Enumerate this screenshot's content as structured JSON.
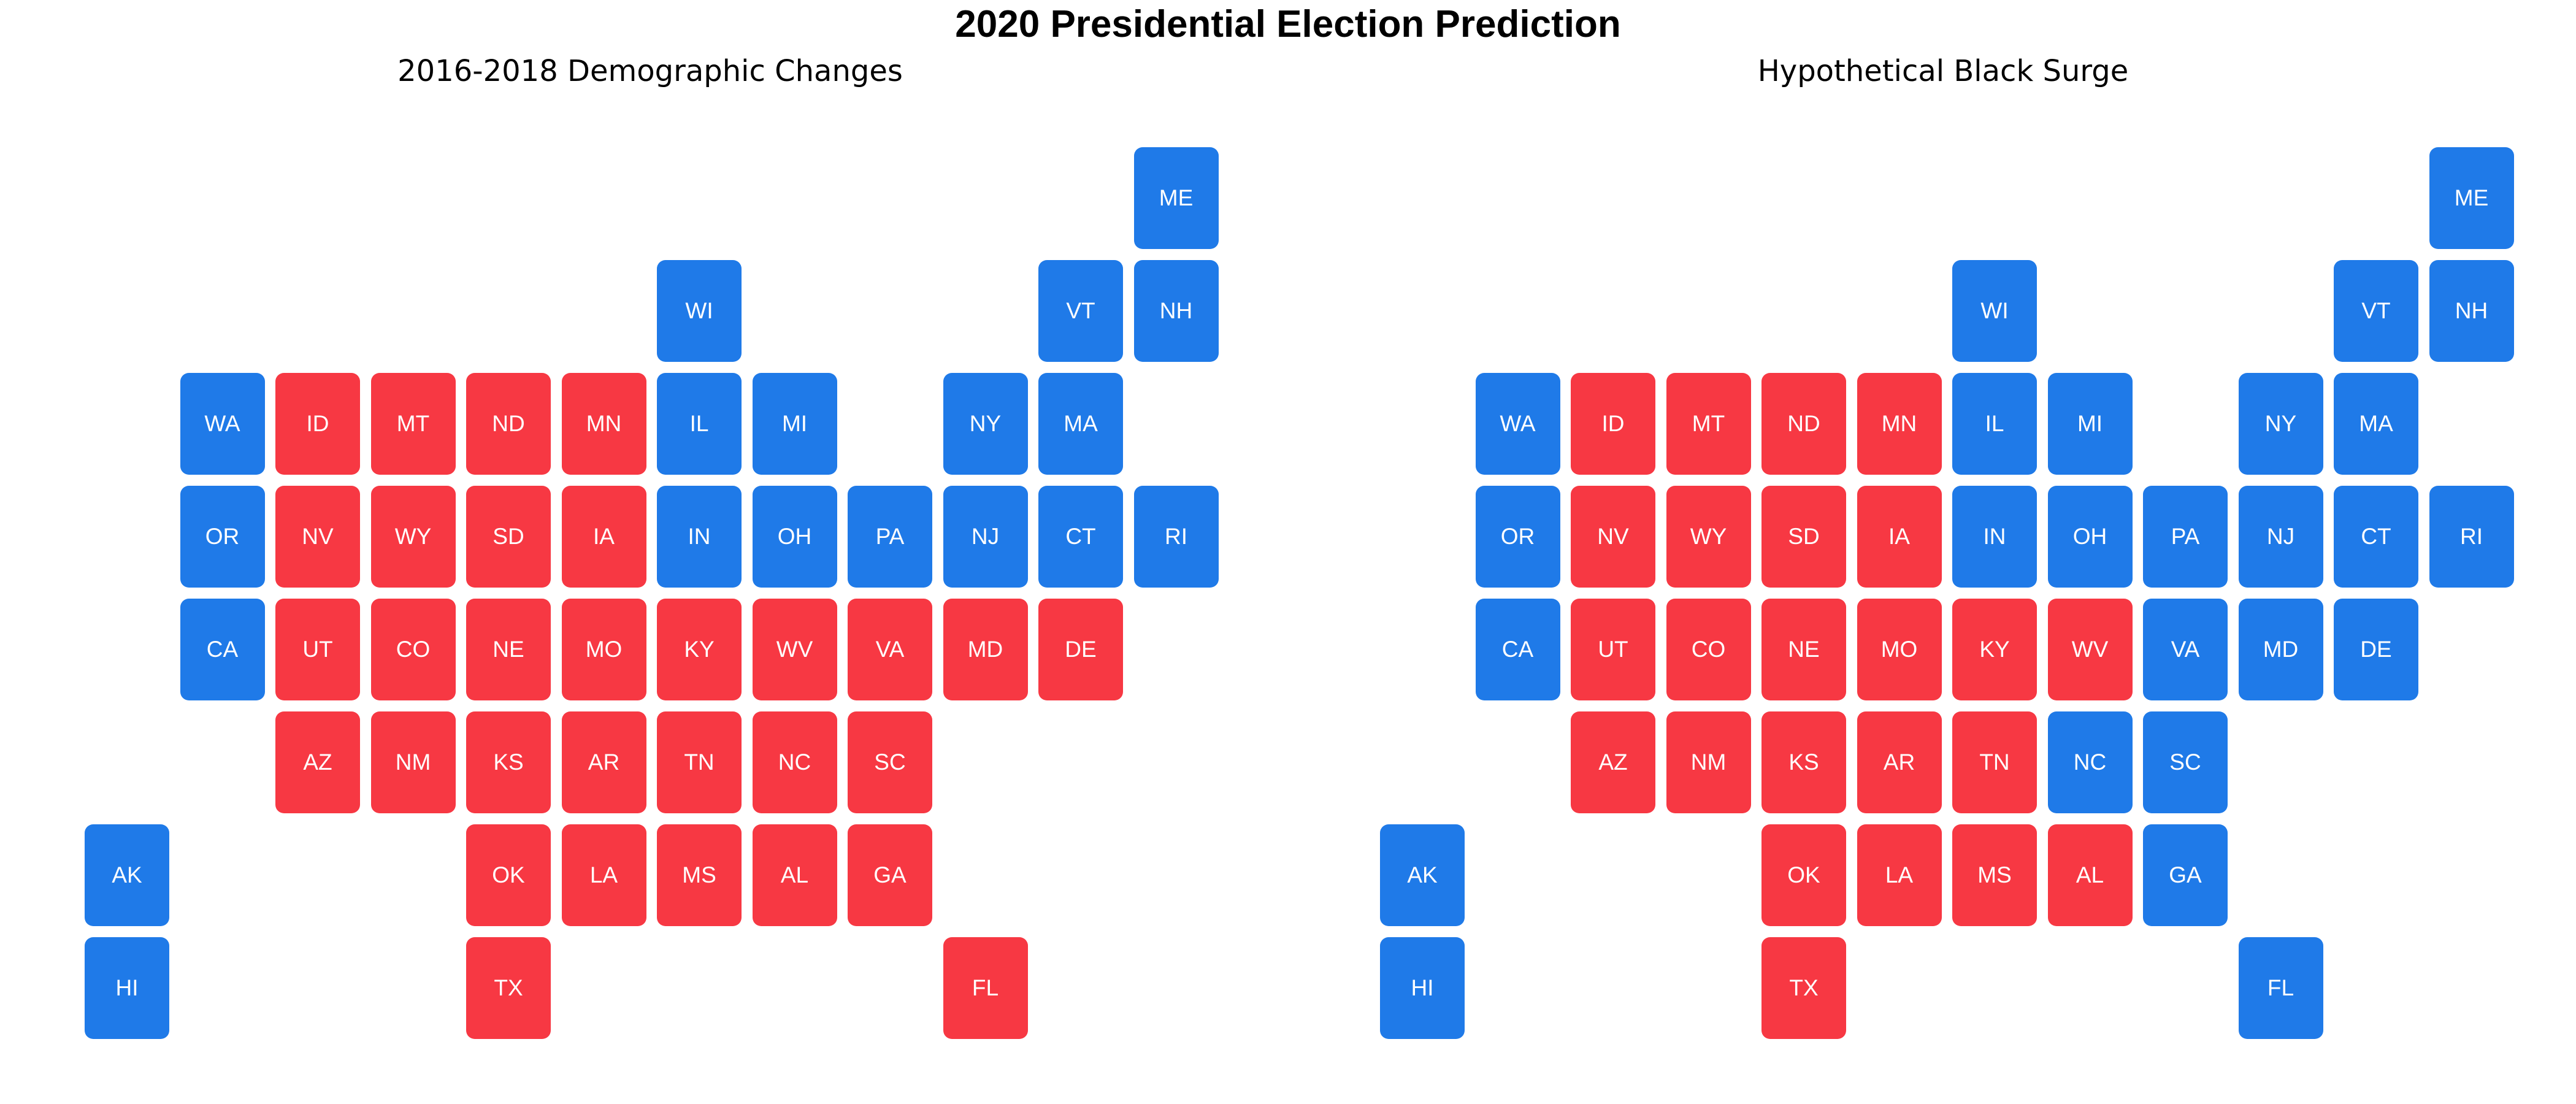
{
  "title": "2020 Presidential Election Prediction",
  "colors": {
    "dem": "#1f7ae8",
    "rep": "#f73843"
  },
  "grid": {
    "ME": [
      11,
      0
    ],
    "WI": [
      6,
      1
    ],
    "VT": [
      10,
      1
    ],
    "NH": [
      11,
      1
    ],
    "WA": [
      1,
      2
    ],
    "ID": [
      2,
      2
    ],
    "MT": [
      3,
      2
    ],
    "ND": [
      4,
      2
    ],
    "MN": [
      5,
      2
    ],
    "IL": [
      6,
      2
    ],
    "MI": [
      7,
      2
    ],
    "NY": [
      9,
      2
    ],
    "MA": [
      10,
      2
    ],
    "OR": [
      1,
      3
    ],
    "NV": [
      2,
      3
    ],
    "WY": [
      3,
      3
    ],
    "SD": [
      4,
      3
    ],
    "IA": [
      5,
      3
    ],
    "IN": [
      6,
      3
    ],
    "OH": [
      7,
      3
    ],
    "PA": [
      8,
      3
    ],
    "NJ": [
      9,
      3
    ],
    "CT": [
      10,
      3
    ],
    "RI": [
      11,
      3
    ],
    "CA": [
      1,
      4
    ],
    "UT": [
      2,
      4
    ],
    "CO": [
      3,
      4
    ],
    "NE": [
      4,
      4
    ],
    "MO": [
      5,
      4
    ],
    "KY": [
      6,
      4
    ],
    "WV": [
      7,
      4
    ],
    "VA": [
      8,
      4
    ],
    "MD": [
      9,
      4
    ],
    "DE": [
      10,
      4
    ],
    "AZ": [
      2,
      5
    ],
    "NM": [
      3,
      5
    ],
    "KS": [
      4,
      5
    ],
    "AR": [
      5,
      5
    ],
    "TN": [
      6,
      5
    ],
    "NC": [
      7,
      5
    ],
    "SC": [
      8,
      5
    ],
    "AK": [
      0,
      6
    ],
    "OK": [
      4,
      6
    ],
    "LA": [
      5,
      6
    ],
    "MS": [
      6,
      6
    ],
    "AL": [
      7,
      6
    ],
    "GA": [
      8,
      6
    ],
    "HI": [
      0,
      7
    ],
    "TX": [
      4,
      7
    ],
    "FL": [
      9,
      7
    ]
  },
  "maps": [
    {
      "title": "2016-2018 Demographic Changes",
      "states": {
        "ME": "dem",
        "WI": "dem",
        "VT": "dem",
        "NH": "dem",
        "WA": "dem",
        "ID": "rep",
        "MT": "rep",
        "ND": "rep",
        "MN": "rep",
        "IL": "dem",
        "MI": "dem",
        "NY": "dem",
        "MA": "dem",
        "OR": "dem",
        "NV": "rep",
        "WY": "rep",
        "SD": "rep",
        "IA": "rep",
        "IN": "dem",
        "OH": "dem",
        "PA": "dem",
        "NJ": "dem",
        "CT": "dem",
        "RI": "dem",
        "CA": "dem",
        "UT": "rep",
        "CO": "rep",
        "NE": "rep",
        "MO": "rep",
        "KY": "rep",
        "WV": "rep",
        "VA": "rep",
        "MD": "rep",
        "DE": "rep",
        "AZ": "rep",
        "NM": "rep",
        "KS": "rep",
        "AR": "rep",
        "TN": "rep",
        "NC": "rep",
        "SC": "rep",
        "AK": "dem",
        "OK": "rep",
        "LA": "rep",
        "MS": "rep",
        "AL": "rep",
        "GA": "rep",
        "HI": "dem",
        "TX": "rep",
        "FL": "rep"
      }
    },
    {
      "title": "Hypothetical Black Surge",
      "states": {
        "ME": "dem",
        "WI": "dem",
        "VT": "dem",
        "NH": "dem",
        "WA": "dem",
        "ID": "rep",
        "MT": "rep",
        "ND": "rep",
        "MN": "rep",
        "IL": "dem",
        "MI": "dem",
        "NY": "dem",
        "MA": "dem",
        "OR": "dem",
        "NV": "rep",
        "WY": "rep",
        "SD": "rep",
        "IA": "rep",
        "IN": "dem",
        "OH": "dem",
        "PA": "dem",
        "NJ": "dem",
        "CT": "dem",
        "RI": "dem",
        "CA": "dem",
        "UT": "rep",
        "CO": "rep",
        "NE": "rep",
        "MO": "rep",
        "KY": "rep",
        "WV": "rep",
        "VA": "dem",
        "MD": "dem",
        "DE": "dem",
        "AZ": "rep",
        "NM": "rep",
        "KS": "rep",
        "AR": "rep",
        "TN": "rep",
        "NC": "dem",
        "SC": "dem",
        "AK": "dem",
        "OK": "rep",
        "LA": "rep",
        "MS": "rep",
        "AL": "rep",
        "GA": "dem",
        "HI": "dem",
        "TX": "rep",
        "FL": "dem"
      }
    }
  ]
}
